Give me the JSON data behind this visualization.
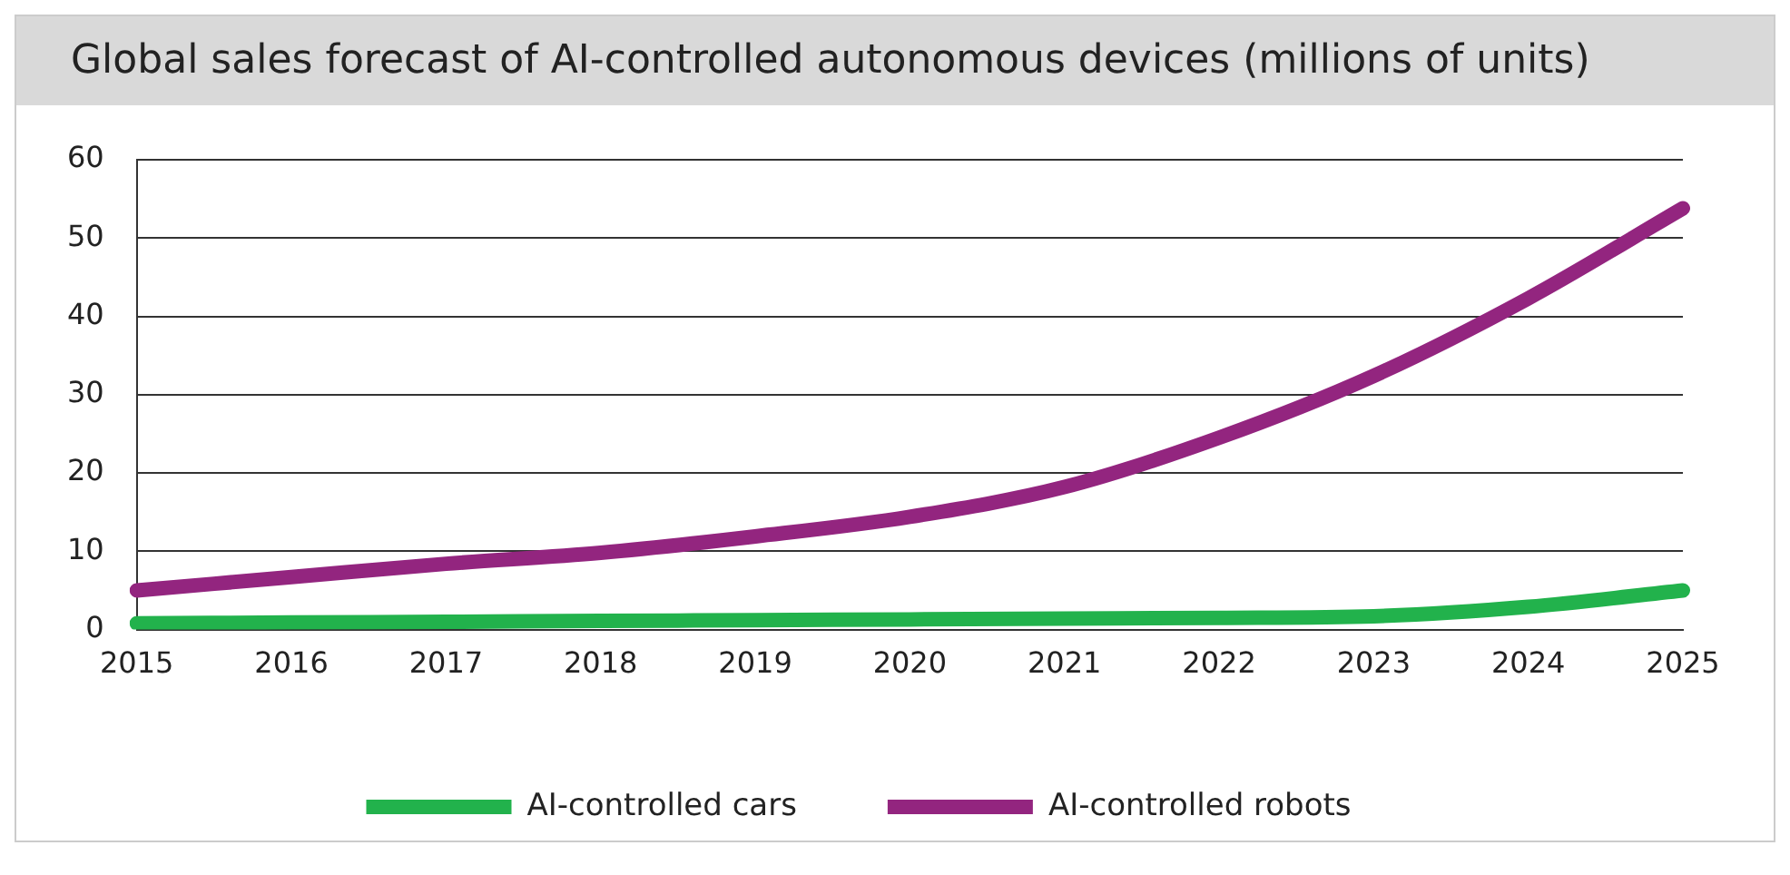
{
  "chart_data": {
    "type": "line",
    "title": "Global sales forecast of AI-controlled autonomous devices (millions of units)",
    "categories": [
      "2015",
      "2016",
      "2017",
      "2018",
      "2019",
      "2020",
      "2021",
      "2022",
      "2023",
      "2024",
      "2025"
    ],
    "series": [
      {
        "name": "AI-controlled cars",
        "color": "#22b24c",
        "values": [
          0.8,
          0.9,
          1.0,
          1.1,
          1.2,
          1.3,
          1.4,
          1.5,
          1.7,
          2.9,
          5.0
        ]
      },
      {
        "name": "AI-controlled robots",
        "color": "#93257f",
        "values": [
          5.0,
          6.7,
          8.4,
          9.8,
          11.9,
          14.4,
          18.2,
          24.5,
          32.4,
          42.3,
          53.8
        ]
      }
    ],
    "ylim": [
      0,
      60
    ],
    "yticks": [
      0,
      10,
      20,
      30,
      40,
      50,
      60
    ],
    "grid": "y",
    "legend": "bottom",
    "marker": "none",
    "line_style": "solid"
  }
}
